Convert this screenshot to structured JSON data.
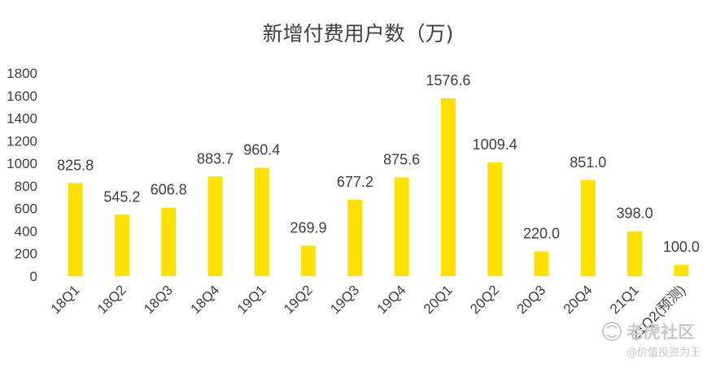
{
  "chart_data": {
    "type": "bar",
    "title": "新增付费用户数（万)",
    "xlabel": "",
    "ylabel": "",
    "ylim": [
      0,
      1800
    ],
    "yticks": [
      0,
      200,
      400,
      600,
      800,
      1000,
      1200,
      1400,
      1600,
      1800
    ],
    "grid": false,
    "legend": "none",
    "categories": [
      "18Q1",
      "18Q2",
      "18Q3",
      "18Q4",
      "19Q1",
      "19Q2",
      "19Q3",
      "19Q4",
      "20Q1",
      "20Q2",
      "20Q3",
      "20Q4",
      "21Q1",
      "21Q2(预测)"
    ],
    "values": [
      825.8,
      545.2,
      606.8,
      883.7,
      960.4,
      269.9,
      677.2,
      875.6,
      1576.6,
      1009.4,
      220.0,
      851.0,
      398.0,
      100.0
    ],
    "value_labels": [
      "825.8",
      "545.2",
      "606.8",
      "883.7",
      "960.4",
      "269.9",
      "677.2",
      "875.6",
      "1576.6",
      "1009.4",
      "220.0",
      "851.0",
      "398.0",
      "100.0"
    ],
    "bar_color": "#FFE000",
    "text_color": "#404040"
  },
  "watermark": {
    "brand": "老虎社区",
    "sub": "@价值投资为王",
    "color": "#C8C8C8"
  }
}
